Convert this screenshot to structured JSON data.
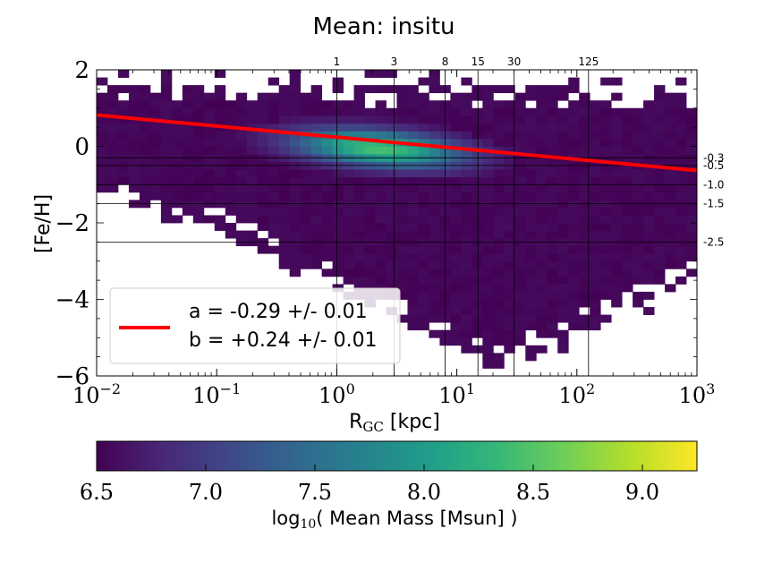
{
  "chart_data": {
    "type": "heatmap",
    "title": "Mean: insitu",
    "xlabel_main": "R",
    "xlabel_sub": "GC",
    "xlabel_unit": " [kpc]",
    "ylabel": "[Fe/H]",
    "xscale": "log",
    "xlim": [
      0.01,
      1000
    ],
    "ylim": [
      -6,
      2
    ],
    "x_ticks": [
      {
        "value": 0.01,
        "base": "10",
        "exp": "−2"
      },
      {
        "value": 0.1,
        "base": "10",
        "exp": "−1"
      },
      {
        "value": 1,
        "base": "10",
        "exp": "0"
      },
      {
        "value": 10,
        "base": "10",
        "exp": "1"
      },
      {
        "value": 100,
        "base": "10",
        "exp": "2"
      },
      {
        "value": 1000,
        "base": "10",
        "exp": "3"
      }
    ],
    "y_ticks": [
      {
        "value": -6,
        "label": "−6"
      },
      {
        "value": -4,
        "label": "−4"
      },
      {
        "value": -2,
        "label": "−2"
      },
      {
        "value": 0,
        "label": "0"
      },
      {
        "value": 2,
        "label": "2"
      }
    ],
    "vertical_lines": [
      {
        "value": 1,
        "label": "1"
      },
      {
        "value": 3,
        "label": "3"
      },
      {
        "value": 8,
        "label": "8"
      },
      {
        "value": 15,
        "label": "15"
      },
      {
        "value": 30,
        "label": "30"
      },
      {
        "value": 125,
        "label": "125"
      }
    ],
    "horizontal_lines": [
      {
        "value": -0.3,
        "label": "-0.3"
      },
      {
        "value": -0.5,
        "label": "-0.5"
      },
      {
        "value": -1.0,
        "label": "-1.0"
      },
      {
        "value": -1.5,
        "label": "-1.5"
      },
      {
        "value": -2.5,
        "label": "-2.5"
      }
    ],
    "fit_line": {
      "color": "#ff0000",
      "a": -0.29,
      "b": 0.24,
      "legend_lines": [
        "a = -0.29 +/- 0.01",
        "b = +0.24 +/- 0.01"
      ]
    },
    "density_core": {
      "center_logx": 0.35,
      "center_y": -0.05,
      "slope": -0.25,
      "sigma_logx": 0.62,
      "sigma_y": 0.42,
      "peak": 8.45
    },
    "colorbar": {
      "label_prefix": "log",
      "label_sub": "10",
      "label_suffix": "( Mean Mass [Msun] )",
      "vmin": 6.5,
      "vmax": 9.25,
      "ticks": [
        {
          "value": 6.5,
          "label": "6.5"
        },
        {
          "value": 7.0,
          "label": "7.0"
        },
        {
          "value": 7.5,
          "label": "7.5"
        },
        {
          "value": 8.0,
          "label": "8.0"
        },
        {
          "value": 8.5,
          "label": "8.5"
        },
        {
          "value": 9.0,
          "label": "9.0"
        }
      ],
      "colormap": [
        "#440154",
        "#482878",
        "#3e4989",
        "#31688e",
        "#26828e",
        "#1f9e89",
        "#35b779",
        "#6ece58",
        "#b5de2b",
        "#fde725"
      ]
    }
  }
}
